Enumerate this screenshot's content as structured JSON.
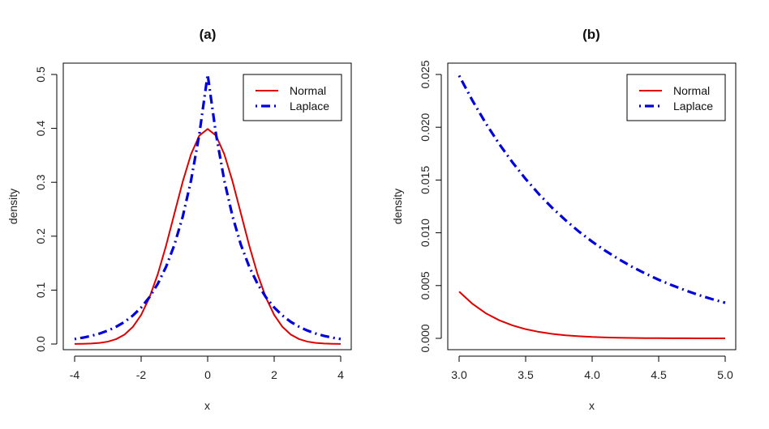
{
  "chart_data": [
    {
      "type": "line",
      "title": "(a)",
      "xlabel": "x",
      "ylabel": "density",
      "xlim": [
        -4,
        4
      ],
      "ylim": [
        0,
        0.5
      ],
      "xticks": [
        "-4",
        "-2",
        "0",
        "2",
        "4"
      ],
      "yticks": [
        "0.0",
        "0.1",
        "0.2",
        "0.3",
        "0.4",
        "0.5"
      ],
      "grid": false,
      "legend_position": "top-right",
      "x": [
        -4,
        -3.75,
        -3.5,
        -3.25,
        -3,
        -2.75,
        -2.5,
        -2.25,
        -2,
        -1.75,
        -1.5,
        -1.25,
        -1,
        -0.75,
        -0.5,
        -0.25,
        0,
        0.25,
        0.5,
        0.75,
        1,
        1.25,
        1.5,
        1.75,
        2,
        2.25,
        2.5,
        2.75,
        3,
        3.25,
        3.5,
        3.75,
        4
      ],
      "series": [
        {
          "name": "Normal",
          "color": "#e00000",
          "style": "solid",
          "values": [
            0.0001,
            0.0004,
            0.0009,
            0.002,
            0.0044,
            0.0091,
            0.0175,
            0.0317,
            0.054,
            0.0863,
            0.1295,
            0.1826,
            0.242,
            0.3011,
            0.3521,
            0.3867,
            0.3989,
            0.3867,
            0.3521,
            0.3011,
            0.242,
            0.1826,
            0.1295,
            0.0863,
            0.054,
            0.0317,
            0.0175,
            0.0091,
            0.0044,
            0.002,
            0.0009,
            0.0004,
            0.0001
          ]
        },
        {
          "name": "Laplace",
          "color": "#0000dd",
          "style": "dot-dash",
          "values": [
            0.0092,
            0.0118,
            0.0151,
            0.0194,
            0.0249,
            0.032,
            0.041,
            0.0527,
            0.0677,
            0.0869,
            0.1116,
            0.1433,
            0.1839,
            0.2362,
            0.3033,
            0.3894,
            0.5,
            0.3894,
            0.3033,
            0.2362,
            0.1839,
            0.1433,
            0.1116,
            0.0869,
            0.0677,
            0.0527,
            0.041,
            0.032,
            0.0249,
            0.0194,
            0.0151,
            0.0118,
            0.0092
          ]
        }
      ]
    },
    {
      "type": "line",
      "title": "(b)",
      "xlabel": "x",
      "ylabel": "density",
      "xlim": [
        3,
        5
      ],
      "ylim": [
        0,
        0.025
      ],
      "xticks": [
        "3.0",
        "3.5",
        "4.0",
        "4.5",
        "5.0"
      ],
      "yticks": [
        "0.000",
        "0.005",
        "0.010",
        "0.015",
        "0.020",
        "0.025"
      ],
      "grid": false,
      "legend_position": "top-right",
      "x": [
        3,
        3.1,
        3.2,
        3.3,
        3.4,
        3.5,
        3.6,
        3.7,
        3.8,
        3.9,
        4,
        4.1,
        4.2,
        4.3,
        4.4,
        4.5,
        4.6,
        4.7,
        4.8,
        4.9,
        5
      ],
      "series": [
        {
          "name": "Normal",
          "color": "#e00000",
          "style": "solid",
          "values": [
            0.00443,
            0.00327,
            0.00238,
            0.00172,
            0.00123,
            0.00087,
            0.00061,
            0.00042,
            0.00029,
            0.0002,
            0.00013,
            9e-05,
            6e-05,
            4e-05,
            2e-05,
            2e-05,
            1e-05,
            1e-05,
            0.0,
            0.0,
            0.0
          ]
        },
        {
          "name": "Laplace",
          "color": "#0000dd",
          "style": "dot-dash",
          "values": [
            0.02489,
            0.02253,
            0.02038,
            0.01844,
            0.01669,
            0.0151,
            0.01366,
            0.01236,
            0.01119,
            0.01012,
            0.00916,
            0.00829,
            0.0075,
            0.00678,
            0.00614,
            0.00555,
            0.00503,
            0.00455,
            0.00411,
            0.00372,
            0.00337
          ]
        }
      ]
    }
  ]
}
